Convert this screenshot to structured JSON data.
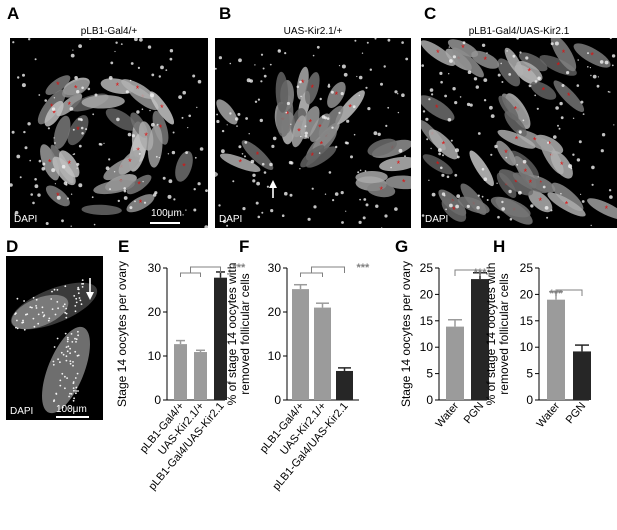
{
  "panels": {
    "A": {
      "letter": "A",
      "title": "pLB1-Gal4/+",
      "stain": "DAPI",
      "scale": "100μm"
    },
    "B": {
      "letter": "B",
      "title": "UAS-Kir2.1/+",
      "stain": "DAPI"
    },
    "C": {
      "letter": "C",
      "title": "pLB1-Gal4/UAS-Kir2.1",
      "stain": "DAPI"
    },
    "D": {
      "letter": "D",
      "stain": "DAPI",
      "scale": "100μm"
    },
    "E": {
      "letter": "E"
    },
    "F": {
      "letter": "F"
    },
    "G": {
      "letter": "G"
    },
    "H": {
      "letter": "H"
    }
  },
  "colors": {
    "grey_bar": "#9b9b9b",
    "black_bar": "#262626",
    "significance": "#808080",
    "asterisk": "#e01010",
    "arrow": "#ffffff"
  },
  "chart_data": [
    {
      "id": "E",
      "type": "bar",
      "ylabel": "Stage 14 oocytes per ovary",
      "categories": [
        "pLB1-Gal4/+",
        "UAS-Kir2.1/+",
        "pLB1-Gal4/UAS-Kir2.1"
      ],
      "values": [
        12.7,
        10.9,
        27.8
      ],
      "errors": [
        0.8,
        0.4,
        1.3
      ],
      "bar_colors": [
        "#9b9b9b",
        "#9b9b9b",
        "#262626"
      ],
      "ylim": [
        0,
        30
      ],
      "yticks": [
        "0",
        "10",
        "20",
        "30"
      ],
      "ytick_values": [
        0,
        10,
        20,
        30
      ],
      "significance": "***",
      "significance_style": "grouped"
    },
    {
      "id": "F",
      "type": "bar",
      "ylabel": "% of stage 14 oocytes with removed follicular cells",
      "categories": [
        "pLB1-Gal4/+",
        "UAS-Kir2.1/+",
        "pLB1-Gal4/UAS-Kir2.1"
      ],
      "values": [
        25.2,
        21.0,
        6.6
      ],
      "errors": [
        1.0,
        1.0,
        0.7
      ],
      "bar_colors": [
        "#9b9b9b",
        "#9b9b9b",
        "#262626"
      ],
      "ylim": [
        0,
        30
      ],
      "yticks": [
        "0",
        "10",
        "20",
        "30"
      ],
      "ytick_values": [
        0,
        10,
        20,
        30
      ],
      "significance": "***",
      "significance_style": "grouped"
    },
    {
      "id": "G",
      "type": "bar",
      "ylabel": "Stage 14 oocytes per ovary",
      "categories": [
        "Water",
        "PGN"
      ],
      "values": [
        13.9,
        22.9
      ],
      "errors": [
        1.3,
        1.2
      ],
      "bar_colors": [
        "#9b9b9b",
        "#262626"
      ],
      "ylim": [
        0,
        25
      ],
      "yticks": [
        "0",
        "5",
        "10",
        "15",
        "20",
        "25"
      ],
      "ytick_values": [
        0,
        5,
        10,
        15,
        20,
        25
      ],
      "significance": "***",
      "significance_style": "bracket-over-second"
    },
    {
      "id": "H",
      "type": "bar",
      "ylabel": "% of stage 14 oocytes with removed follicular cells",
      "categories": [
        "Water",
        "PGN"
      ],
      "values": [
        19.0,
        9.2
      ],
      "errors": [
        1.5,
        1.2
      ],
      "bar_colors": [
        "#9b9b9b",
        "#262626"
      ],
      "ylim": [
        0,
        25
      ],
      "yticks": [
        "0",
        "5",
        "10",
        "15",
        "20",
        "25"
      ],
      "ytick_values": [
        0,
        5,
        10,
        15,
        20,
        25
      ],
      "significance": "***",
      "significance_style": "bracket-over-first"
    }
  ]
}
